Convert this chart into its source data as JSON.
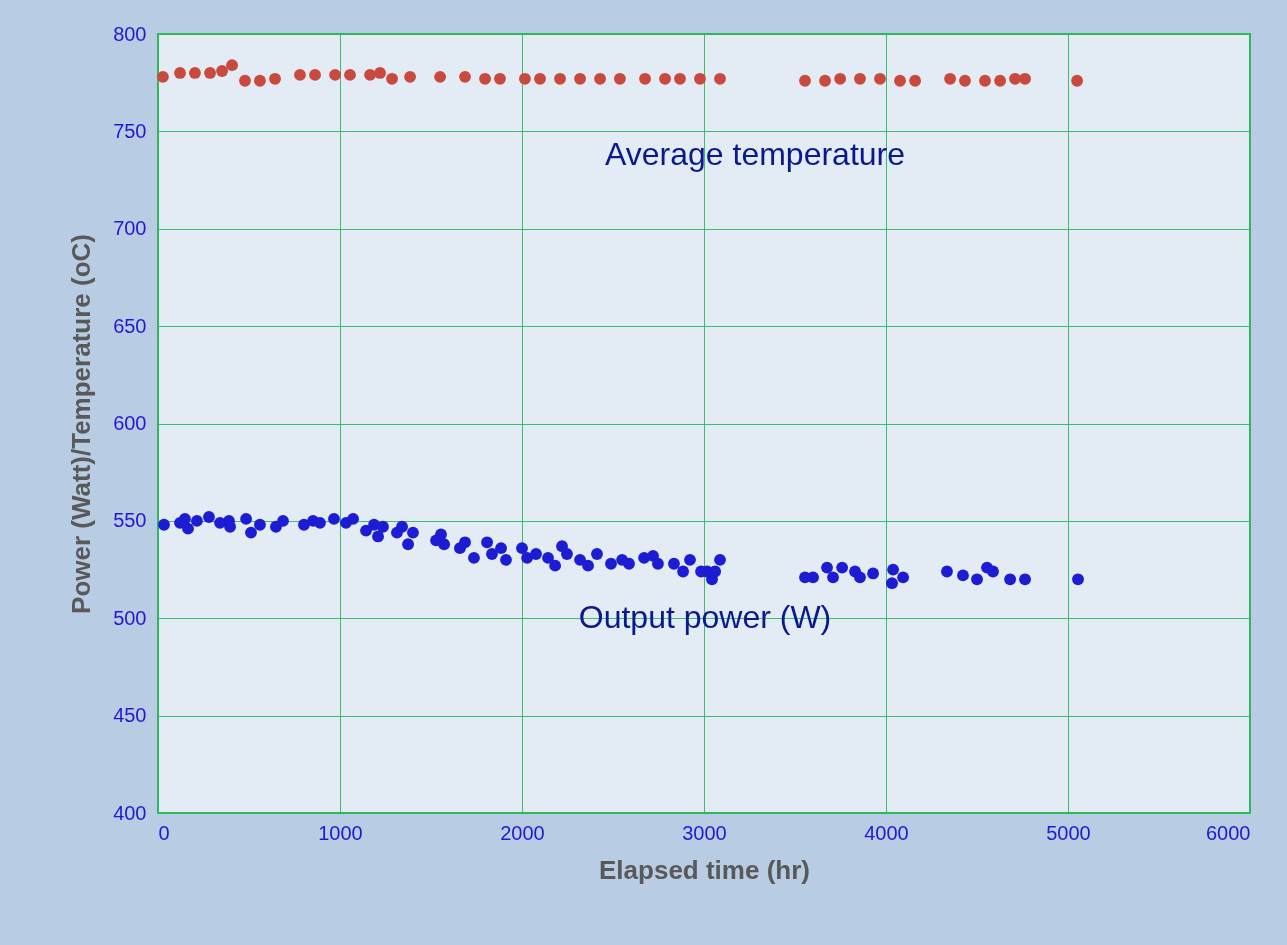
{
  "chart_data": {
    "type": "scatter",
    "xlabel": "Elapsed time (hr)",
    "ylabel": "Power  (Watt)/Temperature (oC)",
    "xlim": [
      0,
      6000
    ],
    "xticks": [
      0,
      1000,
      2000,
      3000,
      4000,
      5000,
      6000
    ],
    "ylim": [
      400,
      800
    ],
    "yticks": [
      400,
      450,
      500,
      550,
      600,
      650,
      700,
      750,
      800
    ],
    "grid": true,
    "marker": "circle",
    "series": [
      {
        "name": "Average temperature",
        "color": "#c8493e",
        "x": [
          27,
          121,
          203,
          286,
          352,
          407,
          478,
          560,
          643,
          780,
          863,
          973,
          1055,
          1165,
          1220,
          1286,
          1385,
          1550,
          1687,
          1797,
          1879,
          2016,
          2099,
          2209,
          2319,
          2429,
          2538,
          2676,
          2786,
          2868,
          2978,
          3088,
          3555,
          3665,
          3748,
          3857,
          3967,
          4077,
          4160,
          4352,
          4434,
          4544,
          4627,
          4709,
          4764,
          5050
        ],
        "values": [
          778,
          780,
          780,
          780,
          781,
          784,
          776,
          776,
          777,
          779,
          779,
          779,
          779,
          779,
          780,
          777,
          778,
          778,
          778,
          777,
          777,
          777,
          777,
          777,
          777,
          777,
          777,
          777,
          777,
          777,
          777,
          777,
          776,
          776,
          777,
          777,
          777,
          776,
          776,
          777,
          776,
          776,
          776,
          777,
          777,
          776
        ]
      },
      {
        "name": "Output power (W)",
        "color": "#1c1cd2",
        "x": [
          33,
          121,
          148,
          165,
          214,
          280,
          341,
          390,
          396,
          484,
          511,
          560,
          648,
          687,
          802,
          852,
          890,
          967,
          1033,
          1072,
          1143,
          1187,
          1209,
          1236,
          1313,
          1341,
          1374,
          1401,
          1528,
          1555,
          1572,
          1659,
          1687,
          1736,
          1808,
          1835,
          1885,
          1912,
          2000,
          2028,
          2077,
          2143,
          2182,
          2220,
          2247,
          2319,
          2363,
          2412,
          2489,
          2550,
          2588,
          2671,
          2720,
          2747,
          2835,
          2885,
          2923,
          2984,
          3017,
          3044,
          3061,
          3088,
          3555,
          3599,
          3676,
          3709,
          3759,
          3830,
          3857,
          3929,
          4033,
          4039,
          4094,
          4335,
          4423,
          4500,
          4555,
          4588,
          4682,
          4764,
          5055
        ],
        "values": [
          548,
          549,
          551,
          546,
          550,
          552,
          549,
          550,
          547,
          551,
          544,
          548,
          547,
          550,
          548,
          550,
          549,
          551,
          549,
          551,
          545,
          548,
          542,
          547,
          544,
          547,
          538,
          544,
          540,
          543,
          538,
          536,
          539,
          531,
          539,
          533,
          536,
          530,
          536,
          531,
          533,
          531,
          527,
          537,
          533,
          530,
          527,
          533,
          528,
          530,
          528,
          531,
          532,
          528,
          528,
          524,
          530,
          524,
          524,
          520,
          524,
          530,
          521,
          521,
          526,
          521,
          526,
          524,
          521,
          523,
          518,
          525,
          521,
          524,
          522,
          520,
          526,
          524,
          520,
          520,
          520
        ]
      }
    ]
  }
}
